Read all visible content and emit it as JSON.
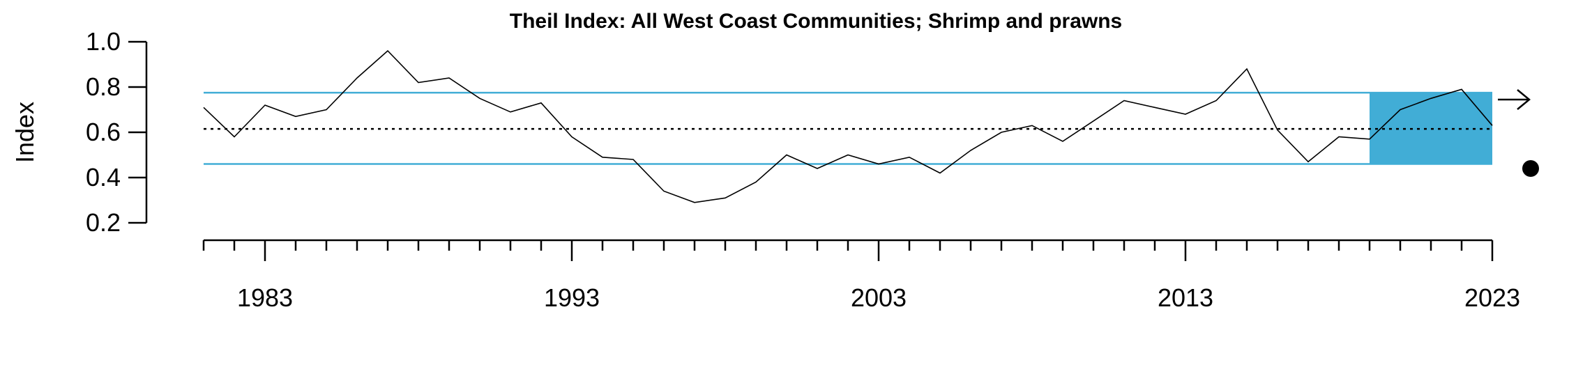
{
  "chart_data": {
    "type": "line",
    "title": "Theil Index: All West Coast Communities; Shrimp and prawns",
    "xlabel": "",
    "ylabel": "Index",
    "xlim": [
      1981,
      2023
    ],
    "ylim": [
      0.2,
      1.0
    ],
    "x_major_ticks": [
      1983,
      1993,
      2003,
      2013,
      2023
    ],
    "x_tick_labels": [
      "1983",
      "1993",
      "2003",
      "2013",
      "2023"
    ],
    "y_ticks": [
      0.2,
      0.4,
      0.6,
      0.8,
      1.0
    ],
    "y_tick_labels": [
      "0.2",
      "0.4",
      "0.6",
      "0.8",
      "1.0"
    ],
    "grid": false,
    "series": [
      {
        "x": [
          1981,
          1982,
          1983,
          1984,
          1985,
          1986,
          1987,
          1988,
          1989,
          1990,
          1991,
          1992,
          1993,
          1994,
          1995,
          1996,
          1997,
          1998,
          1999,
          2000,
          2001,
          2002,
          2003,
          2004,
          2005,
          2006,
          2007,
          2008,
          2009,
          2010,
          2011,
          2012,
          2013,
          2014,
          2015,
          2016,
          2017,
          2018,
          2019,
          2020,
          2021,
          2022,
          2023
        ],
        "values": [
          0.71,
          0.58,
          0.72,
          0.67,
          0.7,
          0.84,
          0.96,
          0.82,
          0.84,
          0.75,
          0.69,
          0.73,
          0.58,
          0.49,
          0.48,
          0.34,
          0.29,
          0.31,
          0.38,
          0.5,
          0.44,
          0.5,
          0.46,
          0.49,
          0.42,
          0.52,
          0.6,
          0.63,
          0.56,
          0.65,
          0.74,
          0.71,
          0.68,
          0.74,
          0.88,
          0.61,
          0.47,
          0.58,
          0.57,
          0.7,
          0.75,
          0.79,
          0.63
        ]
      }
    ],
    "mean": 0.615,
    "upper_band": 0.775,
    "lower_band": 0.46,
    "highlight_range": [
      2019,
      2023
    ],
    "trend_indicator": "right-arrow-icon",
    "mean_indicator": "filled-circle-icon",
    "colors": {
      "band_line": "#41ADD6",
      "highlight": "#41ADD6",
      "series_line": "#000000",
      "mean_line": "#000000"
    }
  }
}
